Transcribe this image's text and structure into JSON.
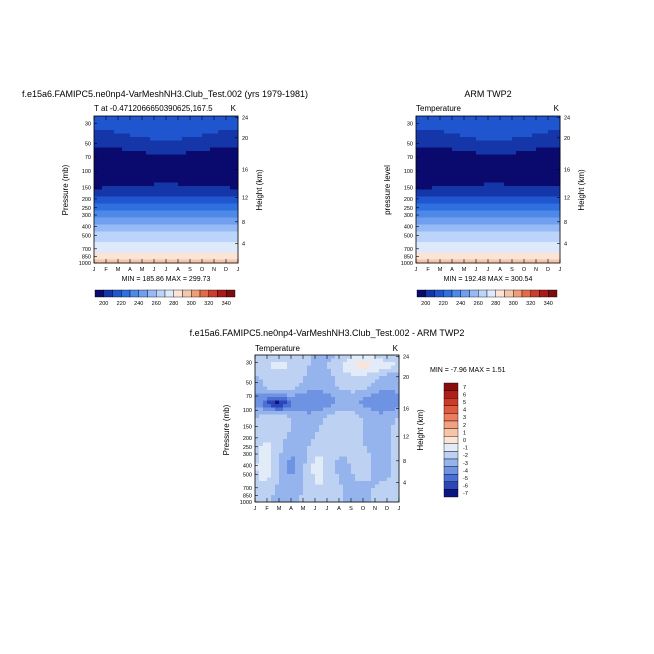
{
  "chart_data": [
    {
      "type": "heatmap",
      "panel": "model",
      "title": "f.e15a6.FAMIPC5.ne0np4-VarMeshNH3.Club_Test.002 (yrs 1979-1981)",
      "left_label": "T at -0.4712066650390625,167.5",
      "right_label": "K",
      "ylabel": "Pressure (mb)",
      "ylabel_right": "Height (km)",
      "months": [
        "J",
        "F",
        "M",
        "A",
        "M",
        "J",
        "J",
        "A",
        "S",
        "O",
        "N",
        "D",
        "J"
      ],
      "pressure_ticks": [
        "30",
        "50",
        "70",
        "100",
        "150",
        "200",
        "250",
        "300",
        "400",
        "500",
        "700",
        "850",
        "1000"
      ],
      "height_ticks": [
        "24",
        "20",
        "16",
        "12",
        "8",
        "4"
      ],
      "minmax": "MIN = 185.86  MAX = 299.73",
      "levels": [
        200,
        210,
        220,
        230,
        240,
        250,
        260,
        270,
        280,
        290,
        300,
        310,
        320,
        330,
        340,
        350
      ],
      "colorbar_labels": [
        "200",
        "220",
        "240",
        "260",
        "280",
        "300",
        "320",
        "340"
      ]
    },
    {
      "type": "heatmap",
      "panel": "obs",
      "title": "ARM TWP2",
      "left_label": "Temperature",
      "right_label": "K",
      "ylabel": "pressure level",
      "ylabel_right": "Height (km)",
      "months": [
        "J",
        "F",
        "M",
        "A",
        "M",
        "J",
        "J",
        "A",
        "S",
        "O",
        "N",
        "D",
        "J"
      ],
      "pressure_ticks": [
        "30",
        "50",
        "70",
        "100",
        "150",
        "200",
        "250",
        "300",
        "400",
        "500",
        "700",
        "850",
        "1000"
      ],
      "height_ticks": [
        "24",
        "20",
        "16",
        "12",
        "8",
        "4"
      ],
      "minmax": "MIN = 192.48  MAX = 300.54",
      "levels": [
        200,
        210,
        220,
        230,
        240,
        250,
        260,
        270,
        280,
        290,
        300,
        310,
        320,
        330,
        340,
        350
      ],
      "colorbar_labels": [
        "200",
        "220",
        "240",
        "260",
        "280",
        "300",
        "320",
        "340"
      ]
    },
    {
      "type": "heatmap",
      "panel": "difference",
      "title": "f.e15a6.FAMIPC5.ne0np4-VarMeshNH3.Club_Test.002 - ARM TWP2",
      "left_label": "Temperature",
      "right_label": "K",
      "ylabel": "Pressure (mb)",
      "ylabel_right": "Height (km)",
      "months": [
        "J",
        "F",
        "M",
        "A",
        "M",
        "J",
        "J",
        "A",
        "S",
        "O",
        "N",
        "D",
        "J"
      ],
      "pressure_ticks": [
        "30",
        "50",
        "70",
        "100",
        "150",
        "200",
        "250",
        "300",
        "400",
        "500",
        "700",
        "850",
        "1000"
      ],
      "height_ticks": [
        "24",
        "20",
        "16",
        "12",
        "8",
        "4"
      ],
      "minmax": "MIN =  -7.96  MAX =   1.51",
      "colorbar_labels": [
        "7",
        "6",
        "5",
        "4",
        "3",
        "2",
        "1",
        "0",
        "-1",
        "-2",
        "-3",
        "-4",
        "-5",
        "-6",
        "-7"
      ]
    }
  ],
  "colors": {
    "temperature_scale": [
      "#0a0a6e",
      "#1436a8",
      "#1f55cf",
      "#2f6fe0",
      "#4d8ae8",
      "#709ff0",
      "#96baf5",
      "#bcd4fa",
      "#dfe9fc",
      "#fbe4d6",
      "#f6c6aa",
      "#ef9d77",
      "#e06c4c",
      "#cc3d2b",
      "#a8191a",
      "#7a0d0d"
    ],
    "difference_scale": [
      "#8a0d0d",
      "#b01e1a",
      "#cc3a2b",
      "#e05a3f",
      "#ec7d5e",
      "#f3a181",
      "#f8c4a8",
      "#fbe4d6",
      "#e2ebf8",
      "#bdd1f3",
      "#95b3ec",
      "#6f93e3",
      "#4c6fd6",
      "#2b46b8",
      "#0b1680"
    ]
  }
}
